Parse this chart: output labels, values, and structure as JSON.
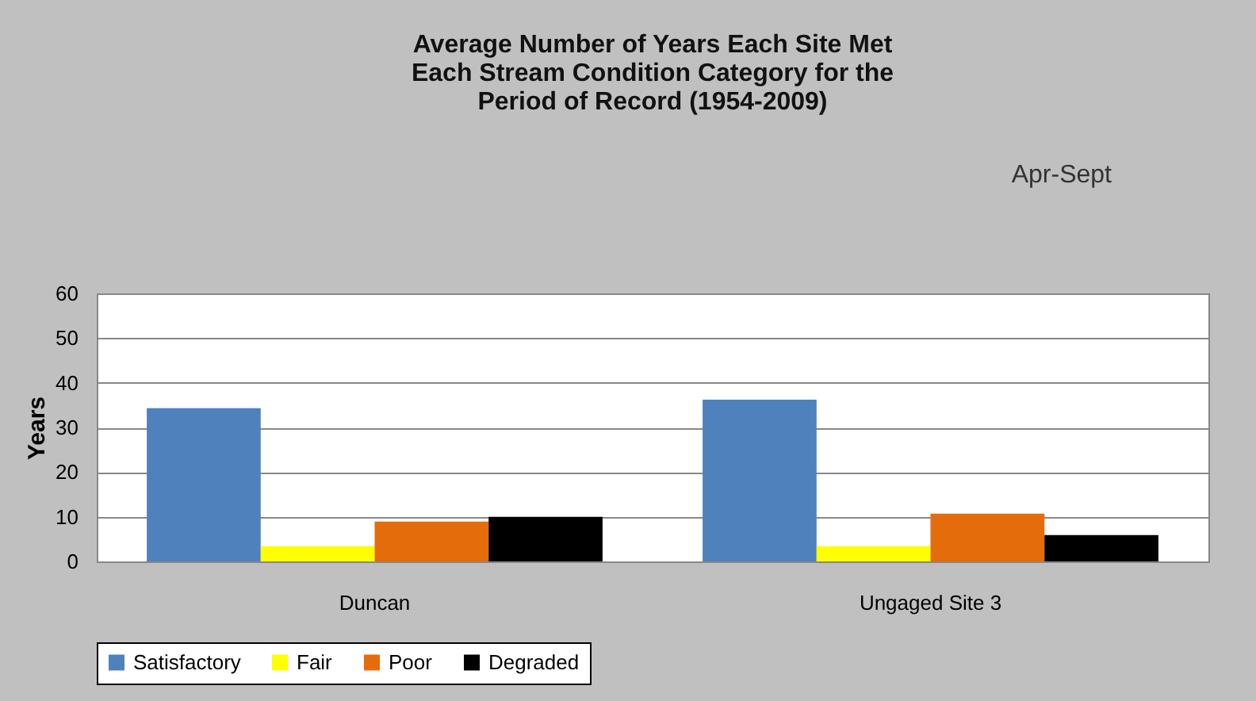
{
  "chart_data": {
    "type": "bar",
    "title": "Average Number of Years Each Site  Met\nEach Stream Condition Category  for the\nPeriod of Record  (1954-2009)",
    "annotations": [
      "Apr-Sept"
    ],
    "ylabel": "Years",
    "categories": [
      "Duncan",
      "Ungaged Site 3"
    ],
    "series": [
      {
        "name": "Satisfactory",
        "color": "#4f81bd",
        "values": [
          34.3,
          36.2
        ]
      },
      {
        "name": "Fair",
        "color": "#ffff00",
        "values": [
          3.4,
          3.4
        ]
      },
      {
        "name": "Poor",
        "color": "#e46c0a",
        "values": [
          8.9,
          10.7
        ]
      },
      {
        "name": "Degraded",
        "color": "#000000",
        "values": [
          10,
          5.9
        ]
      }
    ],
    "ylim": [
      0,
      60
    ],
    "yticks": [
      0,
      10,
      20,
      30,
      40,
      50,
      60
    ],
    "grid": "y",
    "legend": "bottom"
  }
}
